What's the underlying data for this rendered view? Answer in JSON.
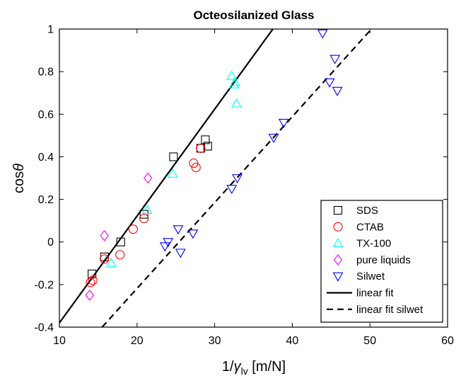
{
  "chart_data": {
    "type": "scatter",
    "title": "Octeosilanized Glass",
    "xlabel": "1/γlv [m/N]",
    "xlabel_parts": {
      "prefix": "1/",
      "symbol": "γ",
      "subscript": "lv",
      "suffix": " [m/N]"
    },
    "ylabel": "cosθ",
    "ylabel_parts": {
      "prefix": "cos",
      "symbol": "θ"
    },
    "xlim": [
      10,
      60
    ],
    "ylim": [
      -0.4,
      1
    ],
    "xticks": [
      10,
      20,
      30,
      40,
      50,
      60
    ],
    "xtick_labels": [
      "10",
      "20",
      "30",
      "40",
      "50",
      "60"
    ],
    "yticks": [
      -0.4,
      -0.2,
      0,
      0.2,
      0.4,
      0.6,
      0.8,
      1
    ],
    "ytick_labels": [
      "-0.4",
      "-0.2",
      "0",
      "0.2",
      "0.4",
      "0.6",
      "0.8",
      "1"
    ],
    "grid": false,
    "legend_position": "bottom-right",
    "series": [
      {
        "name": "SDS",
        "marker": "square",
        "color": "#000000",
        "points": [
          [
            14.2,
            -0.15
          ],
          [
            15.8,
            -0.07
          ],
          [
            17.9,
            0.0
          ],
          [
            20.9,
            0.13
          ],
          [
            24.7,
            0.4
          ],
          [
            28.2,
            0.44
          ],
          [
            28.8,
            0.48
          ],
          [
            29.1,
            0.45
          ]
        ]
      },
      {
        "name": "CTAB",
        "marker": "circle",
        "color": "#ff0000",
        "points": [
          [
            14.0,
            -0.19
          ],
          [
            14.3,
            -0.18
          ],
          [
            15.8,
            -0.08
          ],
          [
            17.8,
            -0.06
          ],
          [
            19.5,
            0.06
          ],
          [
            20.9,
            0.11
          ],
          [
            27.3,
            0.37
          ],
          [
            27.6,
            0.35
          ],
          [
            28.2,
            0.44
          ]
        ]
      },
      {
        "name": "TX-100",
        "marker": "triangle-up",
        "color": "#00ffff",
        "points": [
          [
            16.7,
            -0.1
          ],
          [
            21.3,
            0.15
          ],
          [
            24.6,
            0.32
          ],
          [
            32.2,
            0.78
          ],
          [
            32.5,
            0.74
          ],
          [
            32.6,
            0.75
          ],
          [
            32.8,
            0.65
          ]
        ]
      },
      {
        "name": "pure liquids",
        "marker": "diamond",
        "color": "#ff00ff",
        "points": [
          [
            13.9,
            -0.25
          ],
          [
            15.8,
            0.03
          ],
          [
            21.4,
            0.3
          ]
        ]
      },
      {
        "name": "Silwet",
        "marker": "triangle-down",
        "color": "#0000ff",
        "points": [
          [
            23.6,
            -0.02
          ],
          [
            24.0,
            -0.0
          ],
          [
            25.3,
            0.06
          ],
          [
            25.6,
            -0.05
          ],
          [
            27.2,
            0.04
          ],
          [
            32.2,
            0.25
          ],
          [
            32.9,
            0.3
          ],
          [
            37.6,
            0.49
          ],
          [
            38.9,
            0.56
          ],
          [
            43.9,
            0.98
          ],
          [
            44.8,
            0.75
          ],
          [
            45.5,
            0.86
          ],
          [
            45.8,
            0.71
          ]
        ]
      }
    ],
    "fit_lines": [
      {
        "name": "linear fit",
        "style": "solid",
        "color": "#000000",
        "x": [
          10,
          37.5
        ],
        "y": [
          -0.38,
          1.0
        ]
      },
      {
        "name": "linear fit silwet",
        "style": "dashed",
        "color": "#000000",
        "x": [
          15.5,
          50.2
        ],
        "y": [
          -0.4,
          1.0
        ]
      }
    ]
  }
}
